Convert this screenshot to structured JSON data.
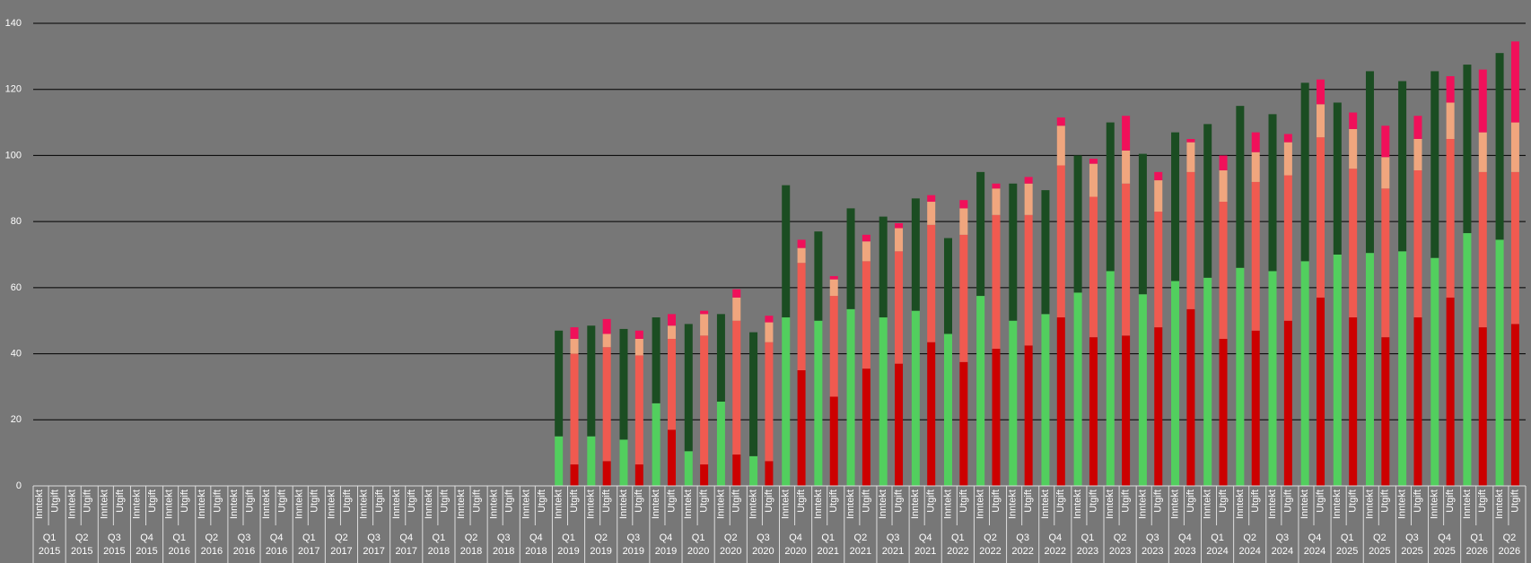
{
  "chart_data": {
    "type": "stacked-bar",
    "categories": [
      [
        "Q1",
        "2015"
      ],
      [
        "Q2",
        "2015"
      ],
      [
        "Q3",
        "2015"
      ],
      [
        "Q4",
        "2015"
      ],
      [
        "Q1",
        "2016"
      ],
      [
        "Q2",
        "2016"
      ],
      [
        "Q3",
        "2016"
      ],
      [
        "Q4",
        "2016"
      ],
      [
        "Q1",
        "2017"
      ],
      [
        "Q2",
        "2017"
      ],
      [
        "Q3",
        "2017"
      ],
      [
        "Q4",
        "2017"
      ],
      [
        "Q1",
        "2018"
      ],
      [
        "Q2",
        "2018"
      ],
      [
        "Q3",
        "2018"
      ],
      [
        "Q4",
        "2018"
      ],
      [
        "Q1",
        "2019"
      ],
      [
        "Q2",
        "2019"
      ],
      [
        "Q3",
        "2019"
      ],
      [
        "Q4",
        "2019"
      ],
      [
        "Q1",
        "2020"
      ],
      [
        "Q2",
        "2020"
      ],
      [
        "Q3",
        "2020"
      ],
      [
        "Q4",
        "2020"
      ],
      [
        "Q1",
        "2021"
      ],
      [
        "Q2",
        "2021"
      ],
      [
        "Q3",
        "2021"
      ],
      [
        "Q4",
        "2021"
      ],
      [
        "Q1",
        "2022"
      ],
      [
        "Q2",
        "2022"
      ],
      [
        "Q3",
        "2022"
      ],
      [
        "Q4",
        "2022"
      ],
      [
        "Q1",
        "2023"
      ],
      [
        "Q2",
        "2023"
      ],
      [
        "Q3",
        "2023"
      ],
      [
        "Q4",
        "2023"
      ],
      [
        "Q1",
        "2024"
      ],
      [
        "Q2",
        "2024"
      ],
      [
        "Q3",
        "2024"
      ],
      [
        "Q4",
        "2024"
      ],
      [
        "Q1",
        "2025"
      ],
      [
        "Q2",
        "2025"
      ],
      [
        "Q3",
        "2025"
      ],
      [
        "Q4",
        "2025"
      ],
      [
        "Q1",
        "2026"
      ],
      [
        "Q2",
        "2026"
      ]
    ],
    "stacks": [
      "Inntekt",
      "Utgift"
    ],
    "series": [
      {
        "stack": 0,
        "color": "#52cf5e",
        "values": [
          0,
          0,
          0,
          0,
          0,
          0,
          0,
          0,
          0,
          0,
          0,
          0,
          0,
          0,
          0,
          0,
          15,
          15,
          14,
          25,
          10.5,
          25.5,
          9,
          51,
          50,
          53.5,
          51,
          53,
          46,
          57.5,
          50,
          52,
          58.5,
          65,
          58,
          62,
          63,
          66,
          65,
          68,
          70,
          70.5,
          71,
          69,
          76.5,
          74.5
        ]
      },
      {
        "stack": 0,
        "color": "#1b4d22",
        "values": [
          0,
          0,
          0,
          0,
          0,
          0,
          0,
          0,
          0,
          0,
          0,
          0,
          0,
          0,
          0,
          0,
          32,
          33.5,
          33.5,
          26,
          38.5,
          26.5,
          37.5,
          40,
          27,
          30.5,
          30.5,
          34,
          29,
          37.5,
          41.5,
          37.5,
          41.5,
          45,
          42.5,
          45,
          46.5,
          49,
          47.5,
          54,
          46,
          55,
          51.5,
          56.5,
          51,
          56.5
        ]
      },
      {
        "stack": 1,
        "color": "#cc0000",
        "values": [
          0,
          0,
          0,
          0,
          0,
          0,
          0,
          0,
          0,
          0,
          0,
          0,
          0,
          0,
          0,
          0,
          6.5,
          7.5,
          6.5,
          17,
          6.5,
          9.5,
          7.5,
          35,
          27,
          35.5,
          37,
          43.5,
          37.5,
          41.5,
          42.5,
          51,
          45,
          45.5,
          48,
          53.5,
          44.5,
          47,
          50,
          57,
          51,
          45,
          51,
          57,
          48,
          49
        ]
      },
      {
        "stack": 1,
        "color": "#f05a50",
        "values": [
          0,
          0,
          0,
          0,
          0,
          0,
          0,
          0,
          0,
          0,
          0,
          0,
          0,
          0,
          0,
          0,
          33.5,
          34.5,
          33,
          27.5,
          39,
          40.5,
          36,
          32.5,
          30.5,
          32.5,
          34,
          35.5,
          38.5,
          40.5,
          39.5,
          46,
          42.5,
          46,
          35,
          41.5,
          41.5,
          45,
          44,
          48.5,
          45,
          45,
          44.5,
          48,
          47,
          46
        ]
      },
      {
        "stack": 1,
        "color": "#f0a67e",
        "values": [
          0,
          0,
          0,
          0,
          0,
          0,
          0,
          0,
          0,
          0,
          0,
          0,
          0,
          0,
          0,
          0,
          4.5,
          4,
          5,
          4,
          6.5,
          7,
          6,
          4.5,
          5,
          6,
          7,
          7,
          8,
          8,
          9.5,
          12,
          10,
          10,
          9.5,
          9,
          9.5,
          9,
          10,
          10,
          12,
          9.5,
          9.5,
          11,
          12,
          15
        ]
      },
      {
        "stack": 1,
        "color": "#f0105a",
        "values": [
          0,
          0,
          0,
          0,
          0,
          0,
          0,
          0,
          0,
          0,
          0,
          0,
          0,
          0,
          0,
          0,
          3.5,
          4.5,
          2.5,
          3.5,
          1,
          2.5,
          2,
          2.5,
          1,
          2,
          1.5,
          2,
          2.5,
          1.5,
          2,
          2.5,
          1.5,
          10.5,
          2.5,
          1,
          4.5,
          6,
          2.5,
          7.5,
          5,
          9.5,
          7,
          8,
          19,
          24.5
        ]
      }
    ],
    "ylim": [
      0,
      140
    ],
    "yticks": [
      0,
      20,
      40,
      60,
      80,
      100,
      120,
      140
    ],
    "grid": true
  }
}
